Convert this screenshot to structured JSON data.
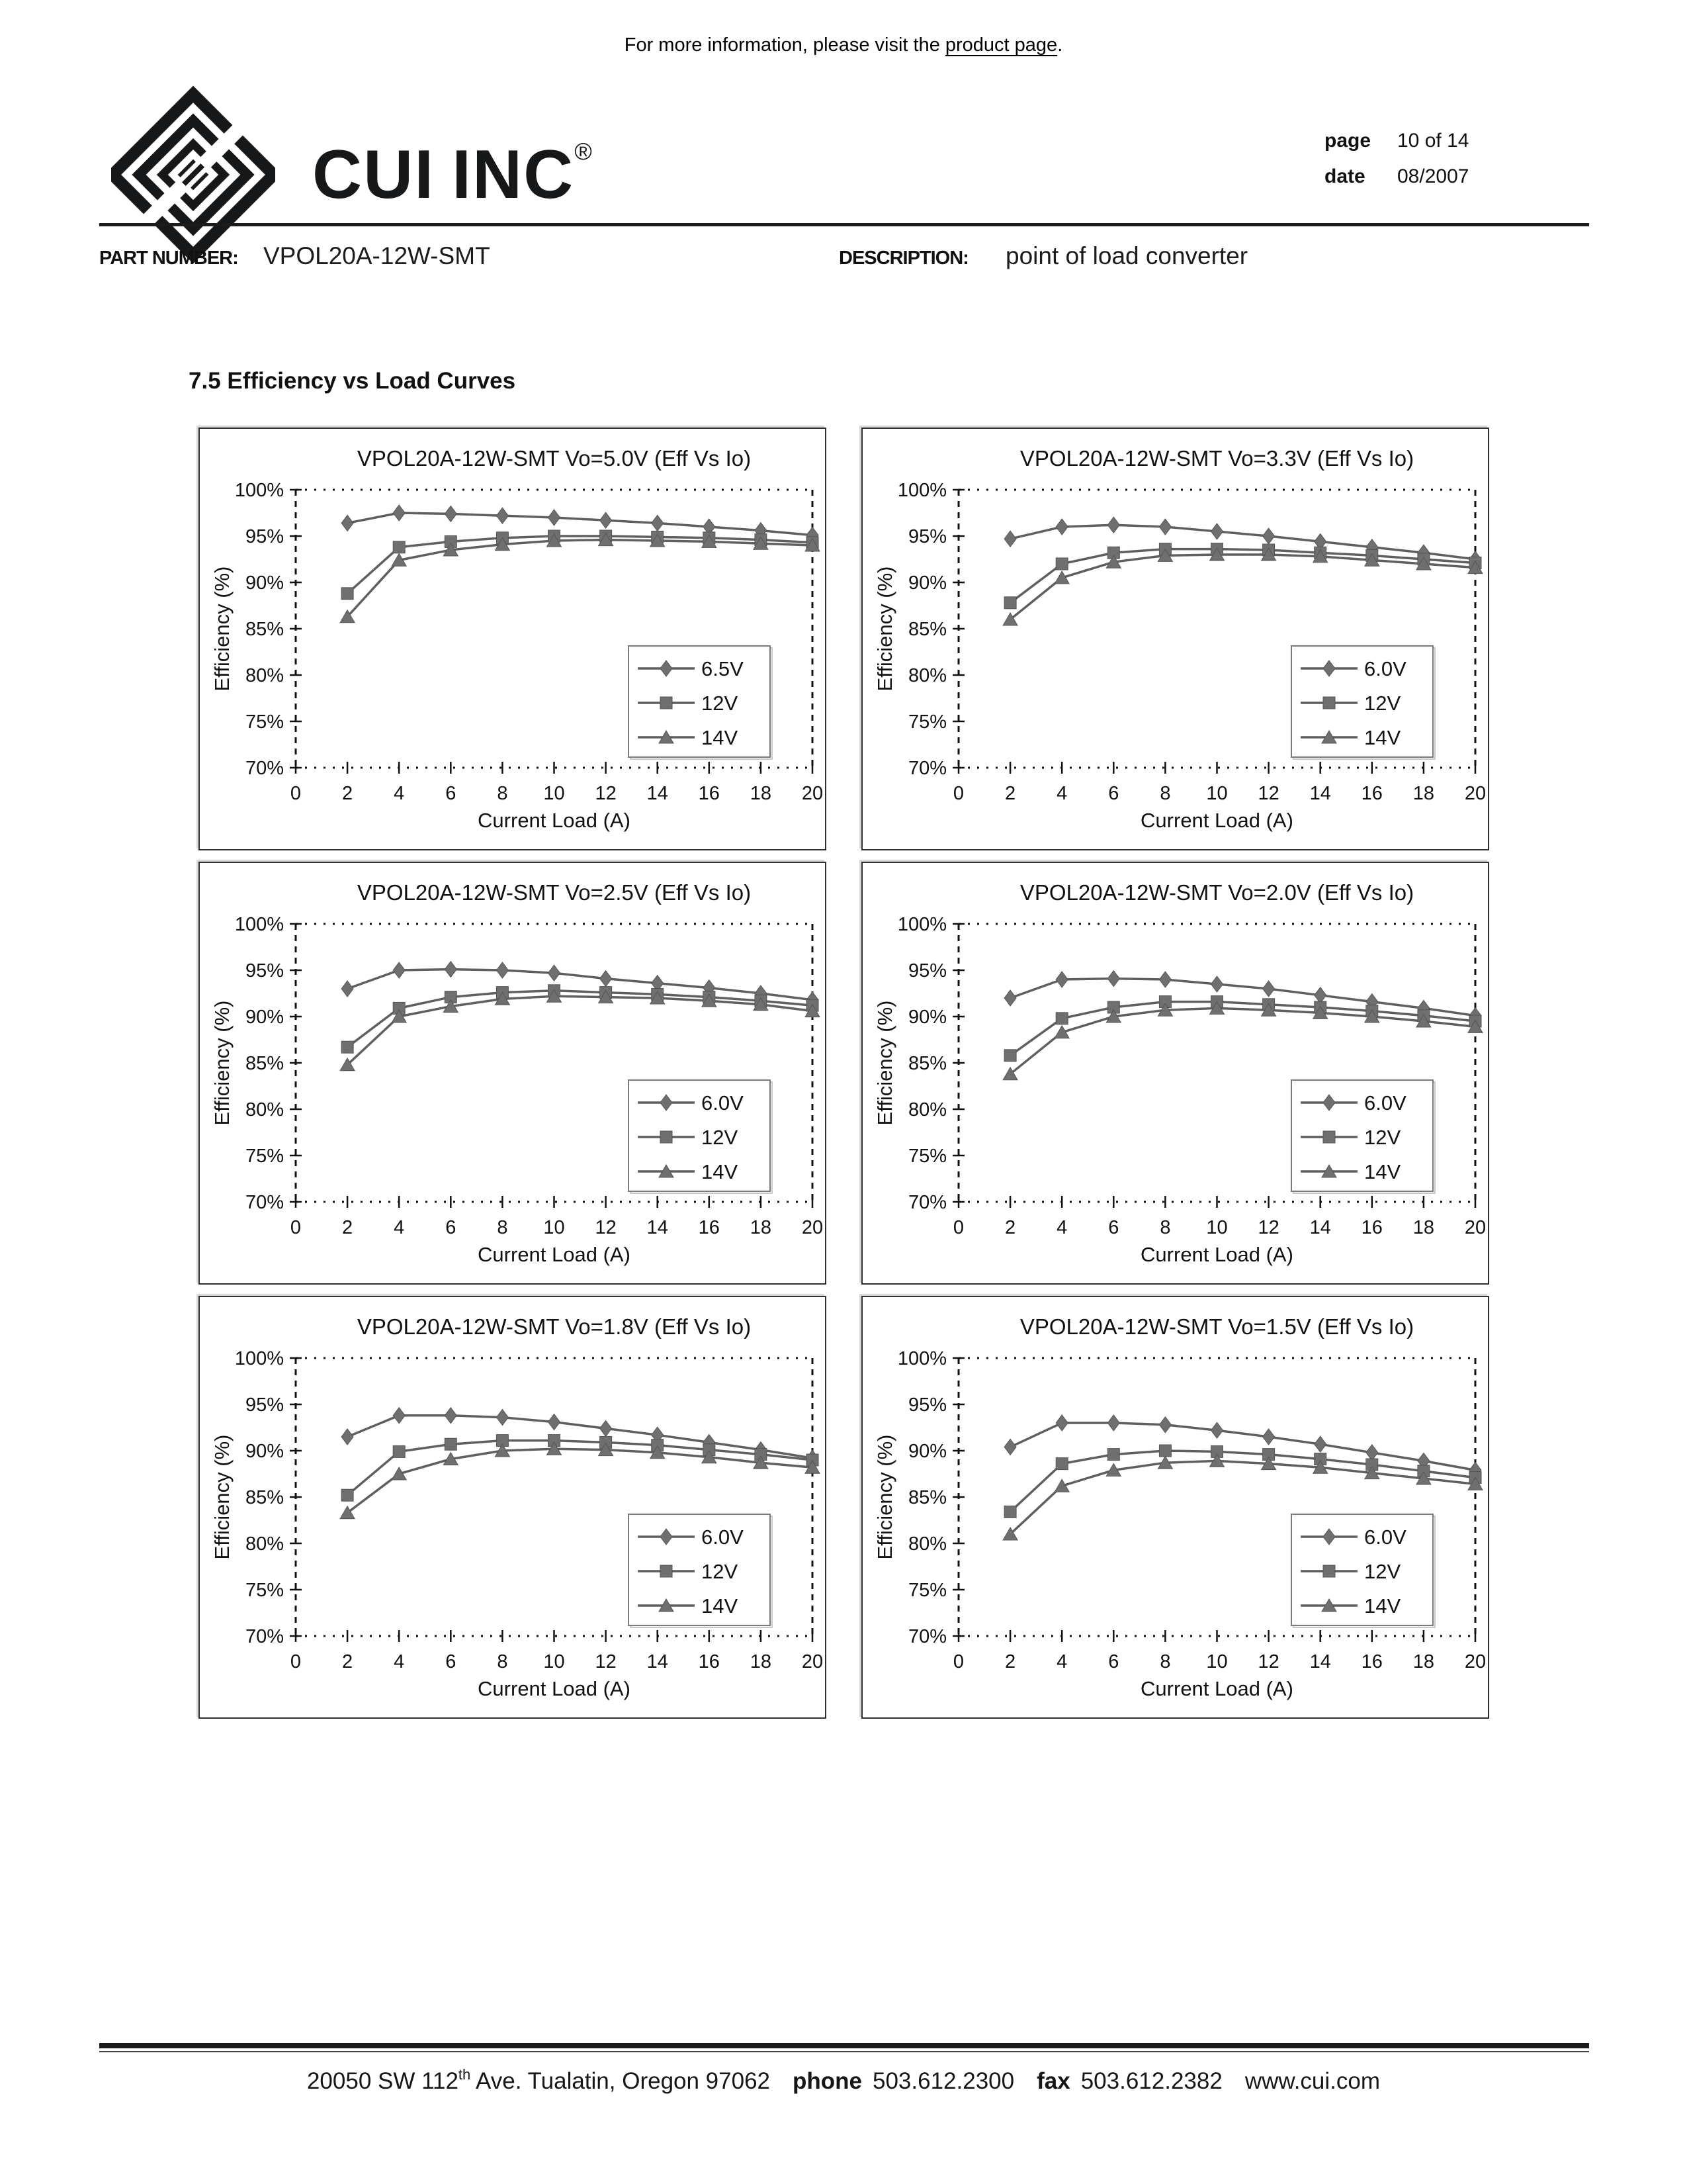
{
  "header": {
    "top_note_prefix": "For more information, please visit the ",
    "top_note_link": "product page",
    "top_note_suffix": ".",
    "logo_text_1": "CUI",
    "logo_text_2": "INC",
    "logo_reg": "®",
    "page_label": "page",
    "page_value": "10 of 14",
    "date_label": "date",
    "date_value": "08/2007"
  },
  "part": {
    "part_number_label": "PART NUMBER:",
    "part_number": "VPOL20A-12W-SMT",
    "description_label": "DESCRIPTION:",
    "description": "point of load converter"
  },
  "section_title": "7.5 Efficiency vs Load Curves",
  "chart_data": [
    {
      "type": "line",
      "title": "VPOL20A-12W-SMT  Vo=5.0V (Eff Vs Io)",
      "xlabel": "Current Load (A)",
      "ylabel": "Efficiency (%)",
      "xlim": [
        0,
        20
      ],
      "ylim": [
        70,
        100
      ],
      "xtick_step": 2,
      "ytick_step": 5,
      "grid": "dotted-frame",
      "legend_position": "lower-right",
      "x": [
        2,
        4,
        6,
        8,
        10,
        12,
        14,
        16,
        18,
        20
      ],
      "series": [
        {
          "name": "6.5V",
          "marker": "diamond",
          "values": [
            96.4,
            97.5,
            97.4,
            97.2,
            97.0,
            96.7,
            96.4,
            96.0,
            95.6,
            95.1
          ]
        },
        {
          "name": "12V",
          "marker": "square",
          "values": [
            88.8,
            93.8,
            94.4,
            94.8,
            95.0,
            95.0,
            94.9,
            94.8,
            94.6,
            94.3
          ]
        },
        {
          "name": "14V",
          "marker": "triangle",
          "values": [
            86.3,
            92.4,
            93.5,
            94.1,
            94.5,
            94.6,
            94.5,
            94.4,
            94.2,
            94.0
          ]
        }
      ]
    },
    {
      "type": "line",
      "title": "VPOL20A-12W-SMT  Vo=3.3V (Eff Vs Io)",
      "xlabel": "Current Load (A)",
      "ylabel": "Efficiency (%)",
      "xlim": [
        0,
        20
      ],
      "ylim": [
        70,
        100
      ],
      "xtick_step": 2,
      "ytick_step": 5,
      "grid": "dotted-frame",
      "legend_position": "lower-right",
      "x": [
        2,
        4,
        6,
        8,
        10,
        12,
        14,
        16,
        18,
        20
      ],
      "series": [
        {
          "name": "6.0V",
          "marker": "diamond",
          "values": [
            94.7,
            96.0,
            96.2,
            96.0,
            95.5,
            95.0,
            94.4,
            93.8,
            93.2,
            92.5
          ]
        },
        {
          "name": "12V",
          "marker": "square",
          "values": [
            87.8,
            92.0,
            93.2,
            93.6,
            93.6,
            93.5,
            93.2,
            92.9,
            92.5,
            92.1
          ]
        },
        {
          "name": "14V",
          "marker": "triangle",
          "values": [
            86.0,
            90.5,
            92.2,
            92.9,
            93.0,
            93.0,
            92.8,
            92.4,
            92.0,
            91.6
          ]
        }
      ]
    },
    {
      "type": "line",
      "title": "VPOL20A-12W-SMT  Vo=2.5V (Eff Vs Io)",
      "xlabel": "Current Load (A)",
      "ylabel": "Efficiency (%)",
      "xlim": [
        0,
        20
      ],
      "ylim": [
        70,
        100
      ],
      "xtick_step": 2,
      "ytick_step": 5,
      "grid": "dotted-frame",
      "legend_position": "lower-right",
      "x": [
        2,
        4,
        6,
        8,
        10,
        12,
        14,
        16,
        18,
        20
      ],
      "series": [
        {
          "name": "6.0V",
          "marker": "diamond",
          "values": [
            93.0,
            95.0,
            95.1,
            95.0,
            94.7,
            94.1,
            93.6,
            93.1,
            92.5,
            91.8
          ]
        },
        {
          "name": "12V",
          "marker": "square",
          "values": [
            86.7,
            90.9,
            92.1,
            92.6,
            92.8,
            92.6,
            92.4,
            92.1,
            91.7,
            91.2
          ]
        },
        {
          "name": "14V",
          "marker": "triangle",
          "values": [
            84.8,
            90.0,
            91.1,
            91.9,
            92.2,
            92.1,
            92.0,
            91.7,
            91.3,
            90.6
          ]
        }
      ]
    },
    {
      "type": "line",
      "title": "VPOL20A-12W-SMT  Vo=2.0V (Eff Vs Io)",
      "xlabel": "Current Load (A)",
      "ylabel": "Efficiency (%)",
      "xlim": [
        0,
        20
      ],
      "ylim": [
        70,
        100
      ],
      "xtick_step": 2,
      "ytick_step": 5,
      "grid": "dotted-frame",
      "legend_position": "lower-right",
      "x": [
        2,
        4,
        6,
        8,
        10,
        12,
        14,
        16,
        18,
        20
      ],
      "series": [
        {
          "name": "6.0V",
          "marker": "diamond",
          "values": [
            92.0,
            94.0,
            94.1,
            94.0,
            93.5,
            93.0,
            92.3,
            91.6,
            90.9,
            90.1
          ]
        },
        {
          "name": "12V",
          "marker": "square",
          "values": [
            85.8,
            89.8,
            91.0,
            91.6,
            91.6,
            91.3,
            91.0,
            90.6,
            90.1,
            89.5
          ]
        },
        {
          "name": "14V",
          "marker": "triangle",
          "values": [
            83.8,
            88.3,
            90.0,
            90.7,
            90.9,
            90.7,
            90.4,
            90.0,
            89.5,
            88.9
          ]
        }
      ]
    },
    {
      "type": "line",
      "title": "VPOL20A-12W-SMT  Vo=1.8V (Eff Vs Io)",
      "xlabel": "Current Load (A)",
      "ylabel": "Efficiency (%)",
      "xlim": [
        0,
        20
      ],
      "ylim": [
        70,
        100
      ],
      "xtick_step": 2,
      "ytick_step": 5,
      "grid": "dotted-frame",
      "legend_position": "lower-right",
      "x": [
        2,
        4,
        6,
        8,
        10,
        12,
        14,
        16,
        18,
        20
      ],
      "series": [
        {
          "name": "6.0V",
          "marker": "diamond",
          "values": [
            91.5,
            93.8,
            93.8,
            93.6,
            93.1,
            92.4,
            91.7,
            90.9,
            90.1,
            89.2
          ]
        },
        {
          "name": "12V",
          "marker": "square",
          "values": [
            85.2,
            89.9,
            90.7,
            91.1,
            91.1,
            90.9,
            90.6,
            90.1,
            89.6,
            89.0
          ]
        },
        {
          "name": "14V",
          "marker": "triangle",
          "values": [
            83.3,
            87.5,
            89.1,
            90.0,
            90.2,
            90.1,
            89.8,
            89.3,
            88.7,
            88.2
          ]
        }
      ]
    },
    {
      "type": "line",
      "title": "VPOL20A-12W-SMT  Vo=1.5V (Eff Vs Io)",
      "xlabel": "Current Load (A)",
      "ylabel": "Efficiency (%)",
      "xlim": [
        0,
        20
      ],
      "ylim": [
        70,
        100
      ],
      "xtick_step": 2,
      "ytick_step": 5,
      "grid": "dotted-frame",
      "legend_position": "lower-right",
      "x": [
        2,
        4,
        6,
        8,
        10,
        12,
        14,
        16,
        18,
        20
      ],
      "series": [
        {
          "name": "6.0V",
          "marker": "diamond",
          "values": [
            90.4,
            93.0,
            93.0,
            92.8,
            92.2,
            91.5,
            90.7,
            89.8,
            88.9,
            87.9
          ]
        },
        {
          "name": "12V",
          "marker": "square",
          "values": [
            83.4,
            88.6,
            89.6,
            90.0,
            89.9,
            89.6,
            89.1,
            88.5,
            87.8,
            87.1
          ]
        },
        {
          "name": "14V",
          "marker": "triangle",
          "values": [
            81.0,
            86.2,
            87.9,
            88.7,
            88.9,
            88.6,
            88.2,
            87.6,
            87.0,
            86.4
          ]
        }
      ]
    }
  ],
  "style": {
    "line_color": "#5f5f5f",
    "marker_color": "#6f6f6f",
    "axis_color": "#111111",
    "legend_border_color": "#7a7a7a"
  },
  "footer": {
    "address_prefix": "20050 SW 112",
    "address_sup": "th",
    "address_suffix": " Ave. Tualatin, Oregon 97062",
    "phone_label": "phone",
    "phone_value": "503.612.2300",
    "fax_label": "fax",
    "fax_value": "503.612.2382",
    "website": "www.cui.com"
  }
}
